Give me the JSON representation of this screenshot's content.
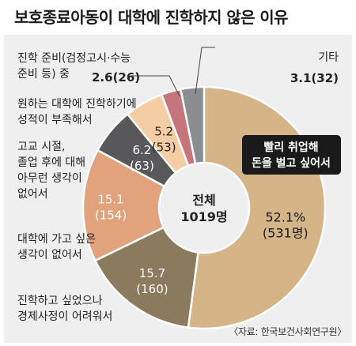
{
  "title": "보호종료아동이 대학에 진학하지 않은 이유",
  "source": "〈자료: 한국보건사회연구원〉",
  "center": {
    "line1": "전체",
    "line2": "1019명"
  },
  "colors": {
    "background": "#efefef",
    "leader": "#444444",
    "text": "#222222"
  },
  "chart_data": {
    "type": "pie",
    "total": 1019,
    "unit": "%",
    "slices": [
      {
        "category_lines": [
          "빨리 취업해",
          "돈을 벌고 싶어서"
        ],
        "percent": 52.1,
        "count": 531,
        "value_label": "52.1%",
        "count_label": "(531명)",
        "color": "#d5b487",
        "label_color": "#1a1a1a",
        "category_boxed": true
      },
      {
        "category_lines": [
          "진학하고 싶었으나",
          "경제사정이 어려워서"
        ],
        "percent": 15.7,
        "count": 160,
        "value_label": "15.7",
        "count_label": "(160)",
        "color": "#8b7a5e",
        "label_color": "#ffffff"
      },
      {
        "category_lines": [
          "대학에 가고 싶은",
          "생각이 없어서"
        ],
        "percent": 15.1,
        "count": 154,
        "value_label": "15.1",
        "count_label": "(154)",
        "color": "#e1a27c",
        "label_color": "#ffffff"
      },
      {
        "category_lines": [
          "고교 시절,",
          "졸업 후에 대해",
          "아무런 생각이",
          "없어서"
        ],
        "percent": 6.2,
        "count": 63,
        "value_label": "6.2",
        "count_label": "(63)",
        "color": "#58585a",
        "label_color": "#ffffff"
      },
      {
        "category_lines": [
          "원하는 대학에 진학하기에",
          "성적이 부족해서"
        ],
        "percent": 5.2,
        "count": 53,
        "value_label": "5.2",
        "count_label": "(53)",
        "color": "#f4cda4",
        "label_color": "#222222"
      },
      {
        "category_lines": [
          "진학 준비(검정고시·수능",
          "준비 등) 중"
        ],
        "percent": 2.6,
        "count": 26,
        "value_label": "2.6(26)",
        "count_label": "",
        "color": "#c5757b",
        "label_color": "#222222"
      },
      {
        "category_lines": [
          "기타"
        ],
        "percent": 3.1,
        "count": 32,
        "value_label": "3.1(32)",
        "count_label": "",
        "color": "#8b8d91",
        "label_color": "#222222"
      }
    ]
  }
}
